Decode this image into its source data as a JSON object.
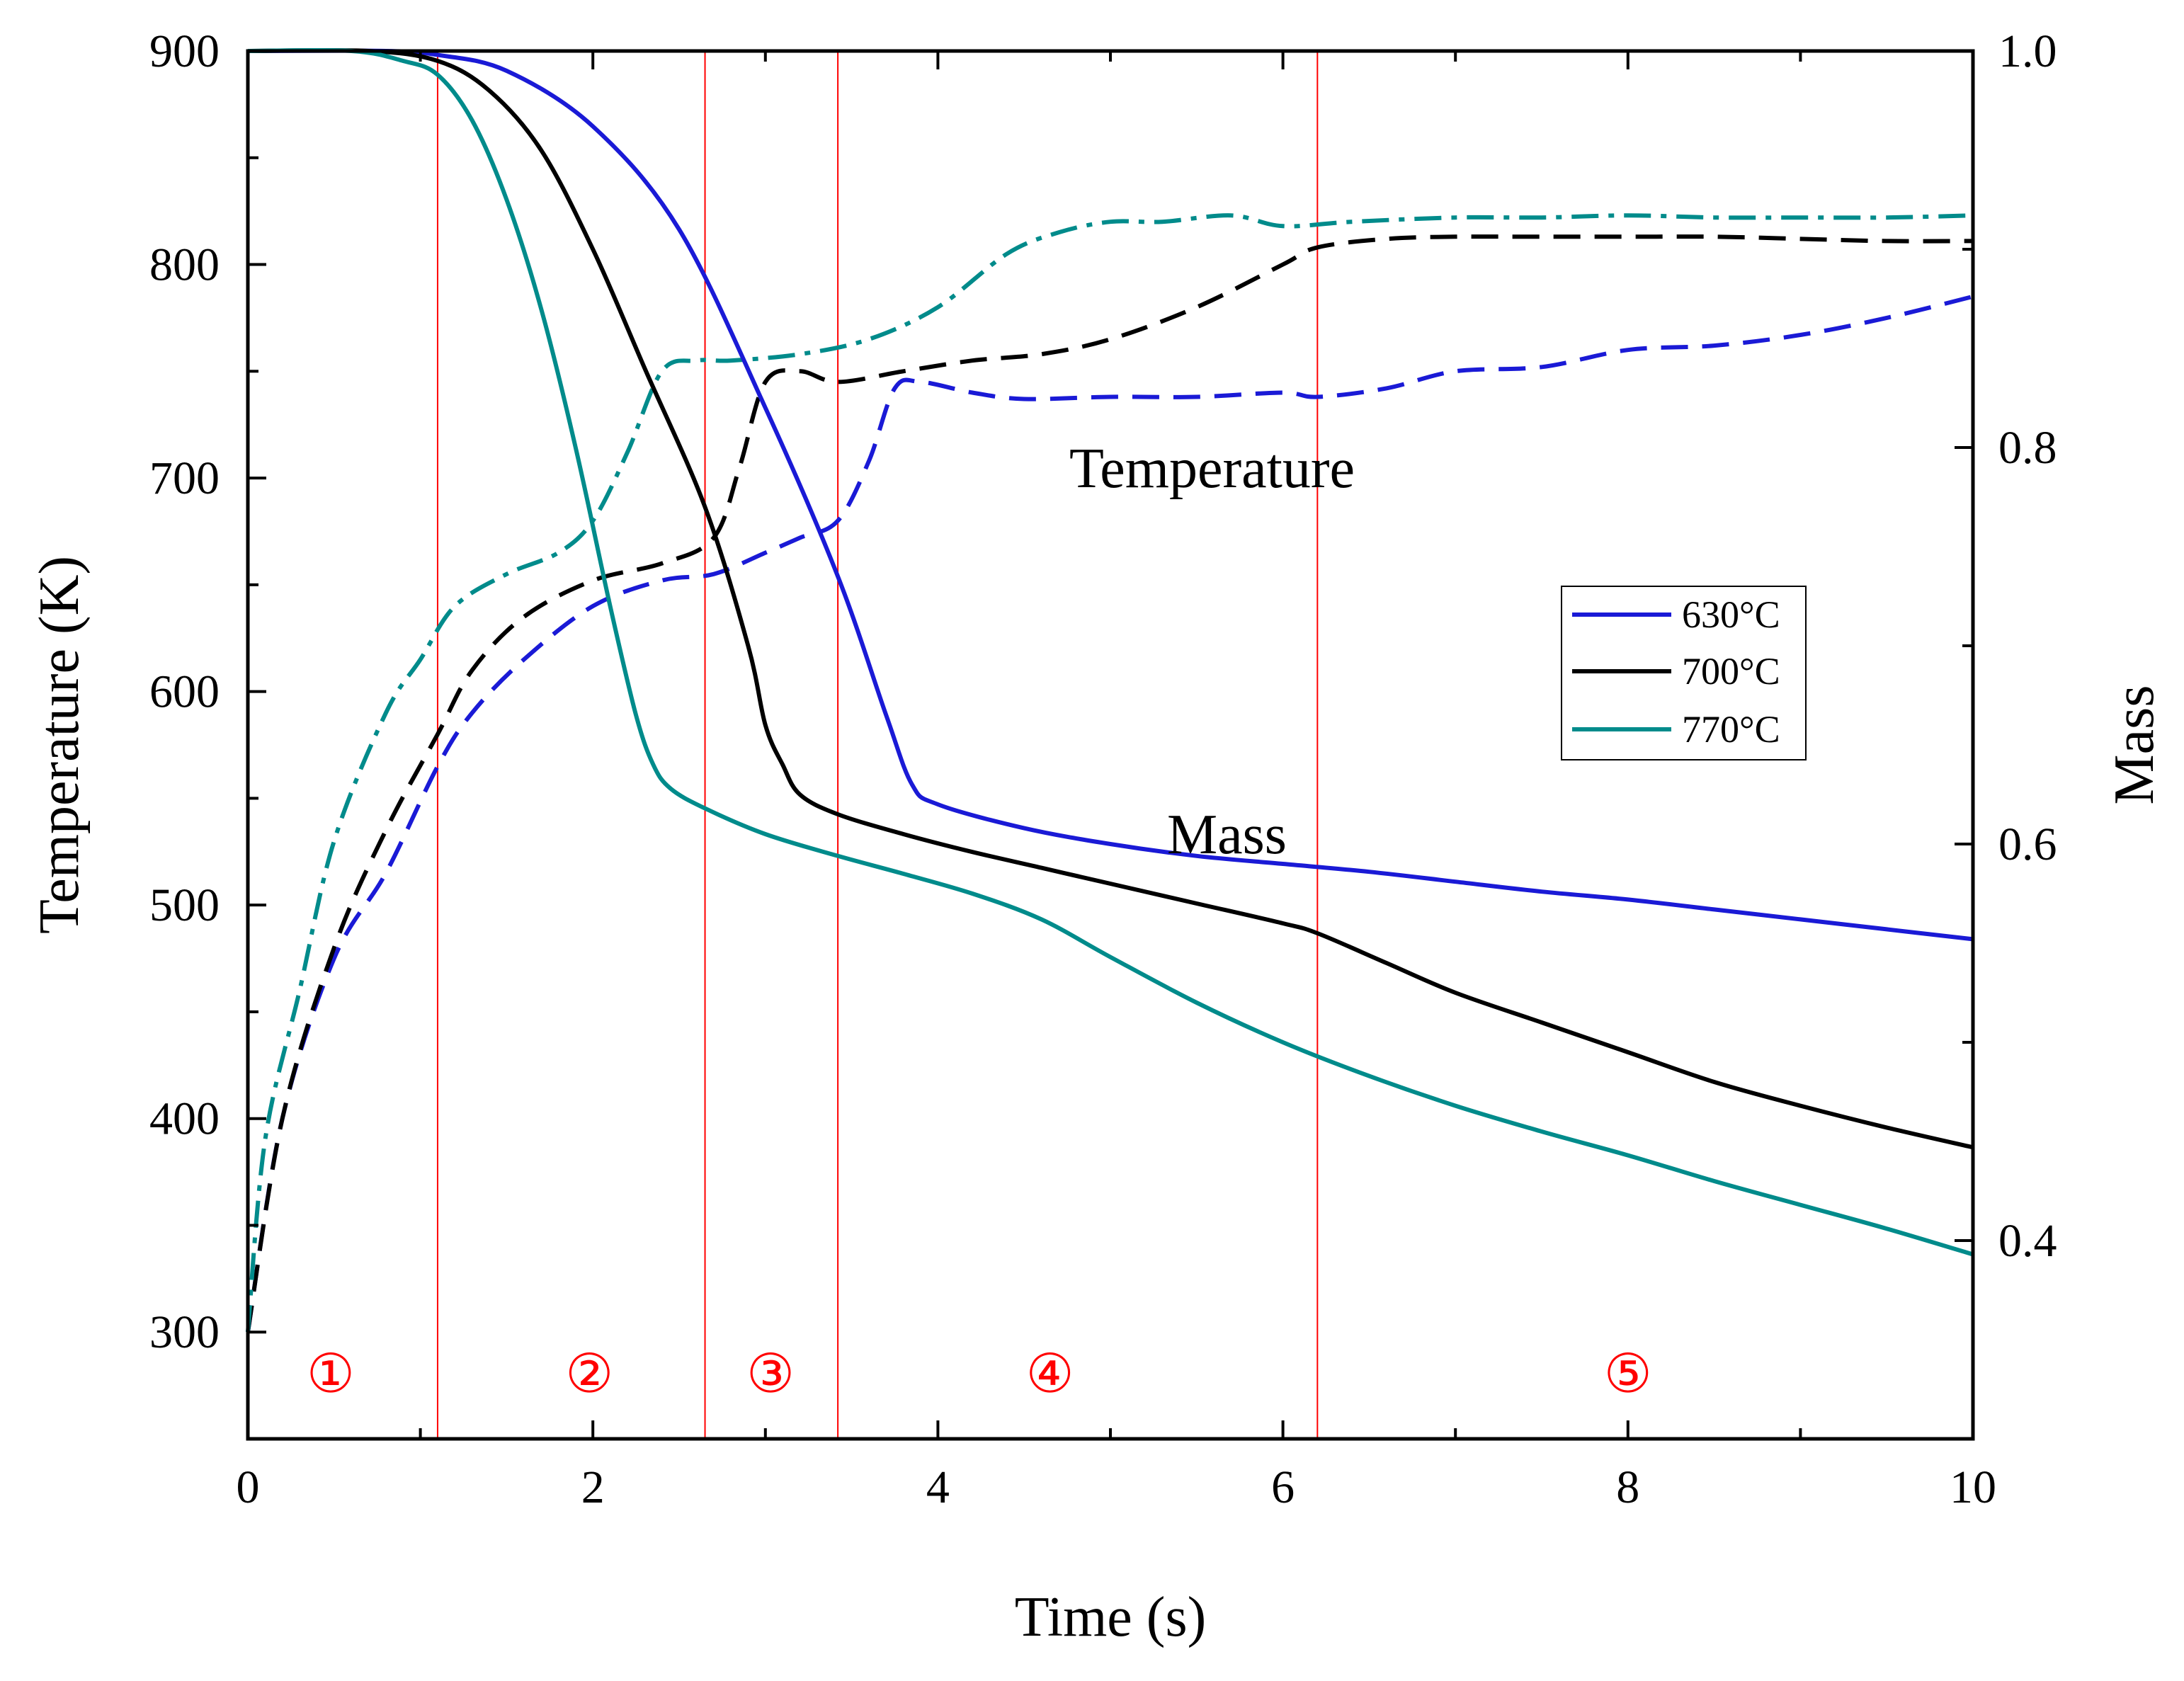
{
  "chart_data": {
    "type": "line",
    "title": "",
    "xlabel": "Time (s)",
    "ylabel": "Temperature (K)",
    "y2label": "Mass",
    "xlim": [
      0,
      10
    ],
    "ylim": [
      250,
      900
    ],
    "y2lim": [
      0.3,
      1.0
    ],
    "x_ticks": [
      "0",
      "2",
      "4",
      "6",
      "8",
      "10"
    ],
    "y_ticks": [
      "300",
      "400",
      "500",
      "600",
      "700",
      "800",
      "900"
    ],
    "y2_ticks": [
      "0.4",
      "0.6",
      "0.8",
      "1.0"
    ],
    "annotations": {
      "temperature": "Temperature",
      "mass": "Mass"
    },
    "regions": {
      "boundaries_s": [
        1.1,
        2.65,
        3.42,
        6.2
      ],
      "labels": [
        {
          "text": "①",
          "x": 0.48
        },
        {
          "text": "②",
          "x": 1.98
        },
        {
          "text": "③",
          "x": 3.03
        },
        {
          "text": "④",
          "x": 4.65
        },
        {
          "text": "⑤",
          "x": 8.0
        }
      ],
      "color": "#ff0000"
    },
    "legend": {
      "location": "right-center",
      "entries": [
        {
          "label": "630°C",
          "color": "#1a1ad6"
        },
        {
          "label": "700°C",
          "color": "#000000"
        },
        {
          "label": "770°C",
          "color": "#008b8b"
        }
      ]
    },
    "series": [
      {
        "name": "630°C Temperature",
        "axis": "left",
        "style": "dashed",
        "color": "#1a1ad6",
        "x": [
          0,
          0.2,
          0.5,
          0.8,
          1.1,
          1.3,
          1.6,
          2.0,
          2.4,
          2.7,
          3.0,
          3.2,
          3.42,
          3.6,
          3.75,
          3.9,
          4.2,
          4.5,
          5.0,
          5.5,
          6.0,
          6.2,
          6.6,
          7.0,
          7.5,
          8.0,
          8.5,
          9.0,
          9.5,
          10.0
        ],
        "y": [
          300,
          400,
          475,
          515,
          565,
          590,
          615,
          640,
          652,
          655,
          665,
          672,
          680,
          708,
          742,
          745,
          740,
          737,
          738,
          738,
          740,
          738,
          742,
          750,
          752,
          760,
          762,
          767,
          775,
          785
        ]
      },
      {
        "name": "700°C Temperature",
        "axis": "left",
        "style": "dashed",
        "color": "#000000",
        "x": [
          0,
          0.2,
          0.5,
          0.8,
          1.1,
          1.3,
          1.6,
          2.0,
          2.4,
          2.7,
          2.85,
          3.0,
          3.2,
          3.42,
          3.8,
          4.2,
          4.6,
          5.0,
          5.5,
          6.0,
          6.2,
          6.6,
          7.0,
          7.5,
          8.0,
          8.5,
          9.0,
          9.5,
          10.0
        ],
        "y": [
          300,
          400,
          480,
          535,
          580,
          610,
          635,
          652,
          660,
          672,
          705,
          745,
          750,
          745,
          750,
          755,
          758,
          765,
          780,
          800,
          808,
          812,
          813,
          813,
          813,
          813,
          812,
          811,
          811
        ]
      },
      {
        "name": "770°C Temperature",
        "axis": "left",
        "style": "dashdot",
        "color": "#008b8b",
        "x": [
          0,
          0.1,
          0.3,
          0.5,
          0.8,
          1.0,
          1.2,
          1.5,
          1.8,
          2.0,
          2.2,
          2.4,
          2.6,
          2.8,
          3.2,
          3.6,
          4.0,
          4.4,
          4.7,
          5.0,
          5.3,
          5.7,
          6.0,
          6.4,
          7.0,
          7.5,
          8.0,
          8.5,
          9.0,
          9.5,
          10.0
        ],
        "y": [
          300,
          390,
          460,
          530,
          590,
          615,
          640,
          655,
          665,
          680,
          712,
          750,
          755,
          755,
          758,
          765,
          780,
          805,
          815,
          820,
          820,
          823,
          818,
          820,
          822,
          822,
          823,
          822,
          822,
          822,
          823
        ]
      },
      {
        "name": "630°C Mass",
        "axis": "right",
        "style": "solid",
        "color": "#1a1ad6",
        "x": [
          0,
          0.8,
          1.1,
          1.5,
          2.0,
          2.5,
          3.0,
          3.42,
          3.7,
          3.85,
          4.0,
          4.5,
          5.0,
          5.5,
          6.0,
          6.5,
          7.0,
          7.5,
          8.0,
          8.5,
          9.0,
          9.5,
          10.0
        ],
        "y": [
          1.0,
          1.0,
          0.998,
          0.99,
          0.962,
          0.91,
          0.82,
          0.735,
          0.665,
          0.63,
          0.62,
          0.608,
          0.6,
          0.594,
          0.59,
          0.586,
          0.581,
          0.576,
          0.572,
          0.567,
          0.562,
          0.557,
          0.552
        ]
      },
      {
        "name": "700°C Mass",
        "axis": "right",
        "style": "solid",
        "color": "#000000",
        "x": [
          0,
          0.7,
          1.1,
          1.4,
          1.7,
          2.0,
          2.3,
          2.65,
          2.9,
          3.0,
          3.1,
          3.2,
          3.42,
          3.8,
          4.2,
          4.6,
          5.0,
          5.5,
          6.0,
          6.2,
          6.6,
          7.0,
          7.5,
          8.0,
          8.5,
          9.0,
          9.5,
          10.0
        ],
        "y": [
          1.0,
          1.0,
          0.995,
          0.98,
          0.95,
          0.9,
          0.84,
          0.77,
          0.7,
          0.66,
          0.64,
          0.625,
          0.615,
          0.605,
          0.596,
          0.588,
          0.58,
          0.57,
          0.56,
          0.555,
          0.54,
          0.525,
          0.51,
          0.495,
          0.48,
          0.468,
          0.457,
          0.447
        ]
      },
      {
        "name": "770°C Mass",
        "axis": "right",
        "style": "solid",
        "color": "#008b8b",
        "x": [
          0,
          0.6,
          0.9,
          1.1,
          1.3,
          1.5,
          1.7,
          1.9,
          2.1,
          2.25,
          2.35,
          2.45,
          2.65,
          3.0,
          3.42,
          3.8,
          4.2,
          4.6,
          5.0,
          5.5,
          6.0,
          6.5,
          7.0,
          7.5,
          8.0,
          8.5,
          9.0,
          9.5,
          10.0
        ],
        "y": [
          1.0,
          1.0,
          0.995,
          0.988,
          0.965,
          0.925,
          0.87,
          0.8,
          0.72,
          0.665,
          0.64,
          0.628,
          0.618,
          0.605,
          0.594,
          0.585,
          0.575,
          0.562,
          0.543,
          0.52,
          0.5,
          0.483,
          0.468,
          0.455,
          0.443,
          0.43,
          0.418,
          0.406,
          0.393
        ]
      }
    ]
  }
}
